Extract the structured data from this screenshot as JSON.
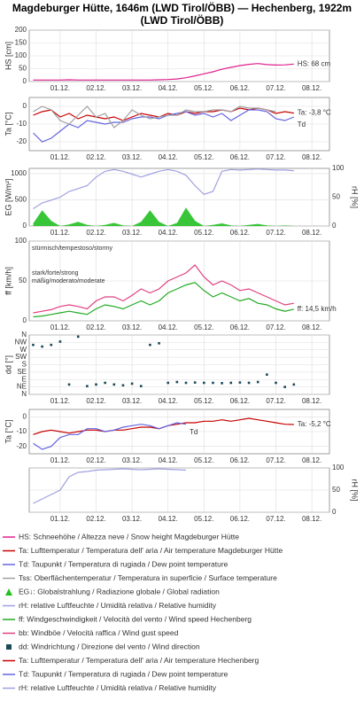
{
  "title": "Magdeburger Hütte, 1646m (LWD Tirol/ÖBB) — Hechenberg, 1922m (LWD Tirol/ÖBB)",
  "chart_data": [
    {
      "type": "line",
      "ylabel": "HS [cm]",
      "x": [
        0.25,
        0.5,
        0.75,
        1,
        1.25,
        1.5,
        1.75,
        2,
        2.25,
        2.5,
        2.75,
        3,
        3.25,
        3.5,
        3.75,
        4,
        4.25,
        4.5,
        4.75,
        5,
        5.25,
        5.5,
        5.75,
        6,
        6.25,
        6.5,
        6.75,
        7,
        7.25,
        7.5
      ],
      "xlim": [
        0.14,
        8.49
      ],
      "xticks": [
        {
          "value": 1,
          "label": "01.12."
        },
        {
          "value": 2,
          "label": "02.12."
        },
        {
          "value": 3,
          "label": "03.12."
        },
        {
          "value": 4,
          "label": "04.12."
        },
        {
          "value": 5,
          "label": "05.12."
        },
        {
          "value": 6,
          "label": "06.12."
        },
        {
          "value": 7,
          "label": "07.12."
        },
        {
          "value": 8,
          "label": "08.12."
        }
      ],
      "ylim": [
        0,
        200
      ],
      "yticks": [
        0,
        50,
        100,
        150,
        200
      ],
      "series": [
        {
          "name": "HS: Schneehöhe / Altezza neve / Snow height  Magdeburger Hütte",
          "color": "#e0208c",
          "end_label": "HS: 68 cm",
          "values": [
            6,
            6,
            6,
            6,
            7,
            6,
            6,
            6,
            6,
            6,
            6,
            6,
            6,
            6,
            7,
            8,
            10,
            15,
            22,
            30,
            38,
            48,
            55,
            62,
            67,
            70,
            66,
            64,
            65,
            68
          ]
        }
      ]
    },
    {
      "type": "line",
      "ylabel": "Ta [°C]",
      "x": [
        0.25,
        0.5,
        0.75,
        1,
        1.25,
        1.5,
        1.75,
        2,
        2.25,
        2.5,
        2.75,
        3,
        3.25,
        3.5,
        3.75,
        4,
        4.25,
        4.5,
        4.75,
        5,
        5.25,
        5.5,
        5.75,
        6,
        6.25,
        6.5,
        6.75,
        7,
        7.25,
        7.5
      ],
      "xlim": [
        0.14,
        8.49
      ],
      "xticks": [
        {
          "value": 1,
          "label": "01.12."
        },
        {
          "value": 2,
          "label": "02.12."
        },
        {
          "value": 3,
          "label": "03.12."
        },
        {
          "value": 4,
          "label": "04.12."
        },
        {
          "value": 5,
          "label": "05.12."
        },
        {
          "value": 6,
          "label": "06.12."
        },
        {
          "value": 7,
          "label": "07.12."
        },
        {
          "value": 8,
          "label": "08.12."
        }
      ],
      "ylim": [
        -25,
        5
      ],
      "yticks": [
        -20,
        -10,
        0
      ],
      "series": [
        {
          "name": "Ta: Lufttemperatur / Temperatura dell' aria / Air temperature  Magdeburger Hütte",
          "color": "#c80000",
          "end_label": "Ta: -3,8 °C",
          "values": [
            -5,
            -3,
            -2,
            -6,
            -4,
            -7,
            -5,
            -6,
            -7,
            -6,
            -8,
            -6,
            -4,
            -5,
            -6,
            -4,
            -5,
            -3,
            -4,
            -3,
            -3,
            -2,
            -3,
            -1,
            -2,
            -1,
            -2,
            -4,
            -3,
            -3.8
          ]
        },
        {
          "name": "Td: Taupunkt / Temperatura di rugiada / Dew point temperature",
          "color": "#6464e0",
          "end_label": "Td",
          "values": [
            -15,
            -20,
            -18,
            -14,
            -10,
            -12,
            -8,
            -9,
            -10,
            -9,
            -9,
            -7,
            -6,
            -6,
            -7,
            -5,
            -4,
            -3,
            -5,
            -4,
            -6,
            -4,
            -8,
            -5,
            -2,
            -2,
            -3,
            -7,
            -8,
            -6
          ]
        },
        {
          "name": "Tss: Oberflächentemperatur / Temperatura in superficie / Surface temperature",
          "color": "#a0a0a0",
          "values": [
            -3,
            0,
            -2,
            -8,
            -10,
            -5,
            0,
            -6,
            -4,
            -12,
            -8,
            -2,
            -5,
            -7,
            -6,
            -5,
            -5,
            -2,
            -3,
            -3,
            -2,
            -2,
            -3,
            0,
            -1,
            -1,
            -2,
            -3,
            null,
            null
          ]
        }
      ]
    },
    {
      "type": "line",
      "ylabel": "EG [W/m²]",
      "y2label": "rH [%]",
      "x": [
        0.25,
        0.5,
        0.75,
        1,
        1.25,
        1.5,
        1.75,
        2,
        2.25,
        2.5,
        2.75,
        3,
        3.25,
        3.5,
        3.75,
        4,
        4.25,
        4.5,
        4.75,
        5,
        5.25,
        5.5,
        5.75,
        6,
        6.25,
        6.5,
        6.75,
        7,
        7.25,
        7.5
      ],
      "xlim": [
        0.14,
        8.49
      ],
      "xticks": [
        {
          "value": 1,
          "label": "01.12."
        },
        {
          "value": 2,
          "label": "02.12."
        },
        {
          "value": 3,
          "label": "03.12."
        },
        {
          "value": 4,
          "label": "04.12."
        },
        {
          "value": 5,
          "label": "05.12."
        },
        {
          "value": 6,
          "label": "06.12."
        },
        {
          "value": 7,
          "label": "07.12."
        },
        {
          "value": 8,
          "label": "08.12."
        }
      ],
      "ylim": [
        0,
        1100
      ],
      "yticks": [
        0,
        500,
        1000
      ],
      "y2lim": [
        0,
        100
      ],
      "y2ticks": [
        0,
        50,
        100
      ],
      "series": [
        {
          "name": "EG↓: Globalstrahlung / Radiazione globale / Global radiation",
          "color": "#22c022",
          "type": "area",
          "values": [
            50,
            300,
            100,
            0,
            30,
            80,
            20,
            0,
            20,
            60,
            10,
            0,
            80,
            300,
            80,
            0,
            60,
            350,
            100,
            0,
            20,
            50,
            10,
            0,
            20,
            40,
            10,
            0,
            10,
            0
          ]
        },
        {
          "name": "rH: relative Luftfeuchte / Umidità relativa / Relative humidity",
          "color": "#a0a0e0",
          "axis": "y2",
          "values": [
            30,
            40,
            45,
            50,
            60,
            65,
            70,
            85,
            95,
            98,
            95,
            90,
            85,
            90,
            95,
            98,
            95,
            88,
            70,
            55,
            60,
            95,
            98,
            97,
            98,
            99,
            98,
            97,
            97,
            96
          ]
        }
      ]
    },
    {
      "type": "line",
      "ylabel": "ff [km/h]",
      "x": [
        0.25,
        0.5,
        0.75,
        1,
        1.25,
        1.5,
        1.75,
        2,
        2.25,
        2.5,
        2.75,
        3,
        3.25,
        3.5,
        3.75,
        4,
        4.25,
        4.5,
        4.75,
        5,
        5.25,
        5.5,
        5.75,
        6,
        6.25,
        6.5,
        6.75,
        7,
        7.25,
        7.5
      ],
      "xlim": [
        0.14,
        8.49
      ],
      "xticks": [
        {
          "value": 1,
          "label": "01.12."
        },
        {
          "value": 2,
          "label": "02.12."
        },
        {
          "value": 3,
          "label": "03.12."
        },
        {
          "value": 4,
          "label": "04.12."
        },
        {
          "value": 5,
          "label": "05.12."
        },
        {
          "value": 6,
          "label": "06.12."
        },
        {
          "value": 7,
          "label": "07.12."
        },
        {
          "value": 8,
          "label": "08.12."
        }
      ],
      "ylim": [
        0,
        100
      ],
      "yticks": [
        0,
        50,
        100
      ],
      "annotations": [
        "stürmisch/tempestoso/stormy",
        "stark/forte/strong",
        "mäßig/moderato/moderate"
      ],
      "series": [
        {
          "name": "ff: Windgeschwindigkeit / Velocità del vento / Wind speed  Hechenberg",
          "color": "#22aa22",
          "end_label": "ff: 14,5 km/h",
          "values": [
            5,
            6,
            8,
            10,
            12,
            10,
            8,
            15,
            20,
            18,
            15,
            20,
            25,
            20,
            25,
            35,
            40,
            45,
            48,
            38,
            30,
            35,
            30,
            25,
            28,
            22,
            20,
            15,
            12,
            14.5
          ]
        },
        {
          "name": "bb: Windböe / Velocità raffica / Wind gust speed",
          "color": "#e04080",
          "values": [
            10,
            12,
            14,
            18,
            20,
            18,
            15,
            25,
            30,
            30,
            25,
            32,
            40,
            35,
            40,
            50,
            55,
            60,
            70,
            55,
            45,
            50,
            45,
            38,
            40,
            35,
            30,
            25,
            20,
            22
          ]
        }
      ]
    },
    {
      "type": "scatter",
      "ylabel": "dd [°]",
      "x": [
        0.25,
        0.5,
        0.75,
        1,
        1.25,
        1.5,
        1.75,
        2,
        2.25,
        2.5,
        2.75,
        3,
        3.25,
        3.5,
        3.75,
        4,
        4.25,
        4.5,
        4.75,
        5,
        5.25,
        5.5,
        5.75,
        6,
        6.25,
        6.5,
        6.75,
        7,
        7.25,
        7.5
      ],
      "xlim": [
        0.14,
        8.49
      ],
      "xticks": [
        {
          "value": 1,
          "label": "01.12."
        },
        {
          "value": 2,
          "label": "02.12."
        },
        {
          "value": 3,
          "label": "03.12."
        },
        {
          "value": 4,
          "label": "04.12."
        },
        {
          "value": 5,
          "label": "05.12."
        },
        {
          "value": 6,
          "label": "06.12."
        },
        {
          "value": 7,
          "label": "07.12."
        },
        {
          "value": 8,
          "label": "08.12."
        }
      ],
      "ylim": [
        0,
        360
      ],
      "yticks": [
        {
          "value": 0,
          "label": "N"
        },
        {
          "value": 45,
          "label": "NE"
        },
        {
          "value": 90,
          "label": "E"
        },
        {
          "value": 135,
          "label": "SE"
        },
        {
          "value": 180,
          "label": "S"
        },
        {
          "value": 225,
          "label": "SW"
        },
        {
          "value": 270,
          "label": "W"
        },
        {
          "value": 315,
          "label": "NW"
        },
        {
          "value": 360,
          "label": "N"
        }
      ],
      "series": [
        {
          "name": "dd: Windrichtung / Direzione del vento / Wind direction",
          "color": "#1a4a5a",
          "values": [
            300,
            290,
            300,
            320,
            60,
            350,
            50,
            60,
            70,
            60,
            55,
            65,
            50,
            300,
            310,
            70,
            75,
            70,
            72,
            70,
            70,
            68,
            70,
            72,
            70,
            75,
            120,
            70,
            45,
            60
          ]
        }
      ]
    },
    {
      "type": "line",
      "ylabel": "Ta [°C]",
      "x": [
        0.25,
        0.5,
        0.75,
        1,
        1.25,
        1.5,
        1.75,
        2,
        2.25,
        2.5,
        2.75,
        3,
        3.25,
        3.5,
        3.75,
        4,
        4.25,
        4.5,
        4.75,
        5,
        5.25,
        5.5,
        5.75,
        6,
        6.25,
        6.5,
        6.75,
        7,
        7.25,
        7.5
      ],
      "xlim": [
        0.14,
        8.49
      ],
      "xticks": [
        {
          "value": 1,
          "label": "01.12."
        },
        {
          "value": 2,
          "label": "02.12."
        },
        {
          "value": 3,
          "label": "03.12."
        },
        {
          "value": 4,
          "label": "04.12."
        },
        {
          "value": 5,
          "label": "05.12."
        },
        {
          "value": 6,
          "label": "06.12."
        },
        {
          "value": 7,
          "label": "07.12."
        },
        {
          "value": 8,
          "label": "08.12."
        }
      ],
      "ylim": [
        -25,
        5
      ],
      "yticks": [
        -20,
        -10,
        0
      ],
      "series": [
        {
          "name": "Ta: Lufttemperatur / Temperatura dell' aria / Air temperature  Hechenberg",
          "color": "#c80000",
          "end_label": "Ta: -5,2 °C",
          "values": [
            -12,
            -10,
            -9,
            -10,
            -11,
            -10,
            -9,
            -9,
            -10,
            -9,
            -9,
            -8,
            -7,
            -7,
            -8,
            -6,
            -5,
            -4,
            -4,
            -3,
            -3,
            -2,
            -3,
            -2,
            -1,
            -2,
            -3,
            -4,
            -5,
            -5.2
          ]
        },
        {
          "name": "Td: Taupunkt / Temperatura di rugiada / Dew point temperature",
          "color": "#6464e0",
          "end_label": "Td",
          "values": [
            -18,
            -22,
            -20,
            -14,
            -12,
            -12,
            -8,
            -8,
            -10,
            -9,
            -7,
            -6,
            -5,
            -6,
            -8,
            -6,
            -4,
            -5,
            null,
            null,
            null,
            null,
            null,
            null,
            null,
            null,
            null,
            null,
            null,
            null
          ]
        }
      ]
    },
    {
      "type": "line",
      "y2label": "rH [%]",
      "x": [
        0.25,
        0.5,
        0.75,
        1,
        1.25,
        1.5,
        1.75,
        2,
        2.25,
        2.5,
        2.75,
        3,
        3.25,
        3.5,
        3.75,
        4,
        4.25,
        4.5,
        4.75,
        5,
        5.25,
        5.5,
        5.75,
        6,
        6.25,
        6.5,
        6.75,
        7,
        7.25,
        7.5
      ],
      "xlim": [
        0.14,
        8.49
      ],
      "xticks": [
        {
          "value": 1,
          "label": "01.12."
        },
        {
          "value": 2,
          "label": "02.12."
        },
        {
          "value": 3,
          "label": "03.12."
        },
        {
          "value": 4,
          "label": "04.12."
        },
        {
          "value": 5,
          "label": "05.12."
        },
        {
          "value": 6,
          "label": "06.12."
        },
        {
          "value": 7,
          "label": "07.12."
        },
        {
          "value": 8,
          "label": "08.12."
        }
      ],
      "y2lim": [
        0,
        100
      ],
      "y2ticks": [
        0,
        50,
        100
      ],
      "series": [
        {
          "name": "rH: relative Luftfeuchte / Umidità relativa / Relative humidity",
          "color": "#a0a0e0",
          "axis": "y2",
          "values": [
            20,
            30,
            40,
            50,
            80,
            90,
            92,
            95,
            96,
            97,
            98,
            97,
            96,
            97,
            98,
            97,
            96,
            95,
            null,
            null,
            null,
            null,
            null,
            null,
            null,
            null,
            null,
            null,
            null,
            null
          ]
        }
      ]
    }
  ]
}
